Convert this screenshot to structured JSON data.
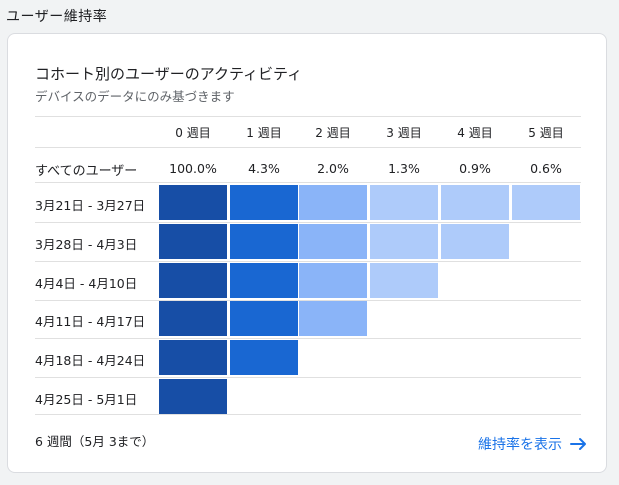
{
  "section": {
    "title": "ユーザー維持率"
  },
  "card": {
    "title": "コホート別のユーザーのアクティビティ",
    "subtitle": "デバイスのデータにのみ基づきます"
  },
  "table": {
    "weeks": [
      "0 週目",
      "1 週目",
      "2 週目",
      "3 週目",
      "4 週目",
      "5 週目"
    ],
    "all_users": {
      "label": "すべてのユーザー",
      "values": [
        "100.0%",
        "4.3%",
        "2.0%",
        "1.3%",
        "0.9%",
        "0.6%"
      ]
    },
    "cohorts": [
      {
        "label": "3月21日 - 3月27日",
        "weeks": 6
      },
      {
        "label": "3月28日 - 4月3日",
        "weeks": 5
      },
      {
        "label": "4月4日 - 4月10日",
        "weeks": 4
      },
      {
        "label": "4月11日 - 4月17日",
        "weeks": 3
      },
      {
        "label": "4月18日 - 4月24日",
        "weeks": 2
      },
      {
        "label": "4月25日 - 5月1日",
        "weeks": 1
      }
    ],
    "week_colors": [
      "#174ea6",
      "#1967d2",
      "#8ab4f8",
      "#aecbfa",
      "#aecbfa",
      "#aecbfa"
    ]
  },
  "footer": {
    "duration": "6 週間（5月 3まで）",
    "link_label": "維持率を表示",
    "link_icon": "arrow-right-icon"
  }
}
